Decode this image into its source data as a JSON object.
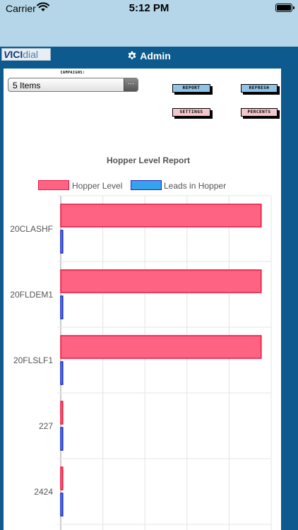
{
  "status_bar": {
    "carrier": "Carrier",
    "time": "5:12 PM"
  },
  "header": {
    "logo_v": "V",
    "logo_ici": "ICI",
    "logo_dial": "dial",
    "title": "Admin"
  },
  "campaigns": {
    "label": "CAMPAIGNS:",
    "selected": "5 Items",
    "picker_glyph": "···"
  },
  "buttons": {
    "report": "REPORT",
    "refresh": "REFRESH",
    "settings": "SETTINGS",
    "percents": "PERCENTS"
  },
  "colors": {
    "hopper_fill": "#ff6384",
    "hopper_border": "#e8173c",
    "leads_fill": "#36a2eb",
    "leads_border": "#1f22c8"
  },
  "chart_data": {
    "type": "bar",
    "orientation": "horizontal",
    "title": "Hopper Level Report",
    "categories": [
      "20CLASHF",
      "20FLDEM1",
      "20FLSLF1",
      "227",
      "2424"
    ],
    "series": [
      {
        "name": "Hopper Level",
        "values": [
          100,
          100,
          100,
          1,
          1
        ]
      },
      {
        "name": "Leads in Hopper",
        "values": [
          1,
          1,
          1,
          1,
          1
        ]
      }
    ],
    "xlim": [
      0,
      105
    ],
    "grid": true,
    "legend": "top"
  }
}
